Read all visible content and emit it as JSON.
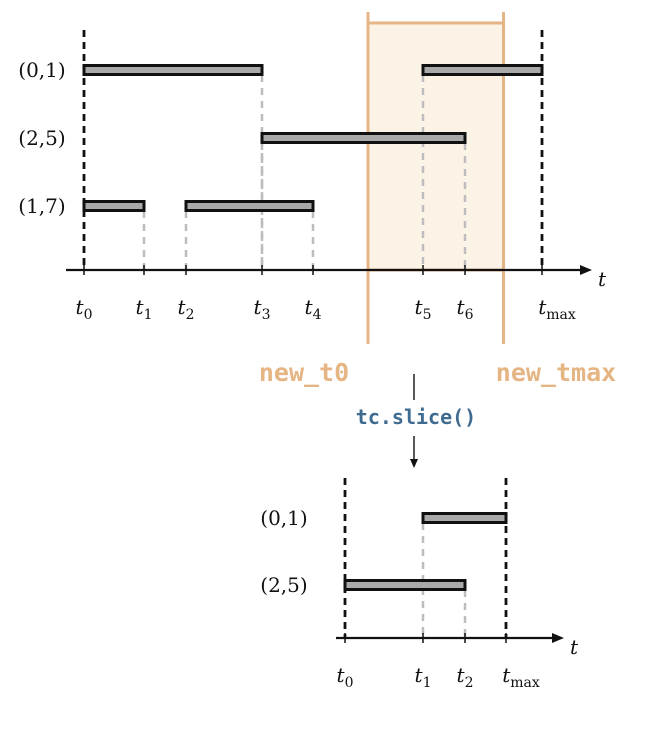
{
  "top": {
    "edges": [
      {
        "label": "(0,1)",
        "intervals": [
          [
            0,
            3
          ],
          [
            5,
            7
          ]
        ]
      },
      {
        "label": "(2,5)",
        "intervals": [
          [
            3,
            6
          ]
        ]
      },
      {
        "label": "(1,7)",
        "intervals": [
          [
            0,
            1
          ],
          [
            2,
            4
          ]
        ]
      }
    ],
    "ticks": [
      {
        "base": "t",
        "sub": "0"
      },
      {
        "base": "t",
        "sub": "1"
      },
      {
        "base": "t",
        "sub": "2"
      },
      {
        "base": "t",
        "sub": "3"
      },
      {
        "base": "t",
        "sub": "4"
      },
      {
        "base": "t",
        "sub": "5"
      },
      {
        "base": "t",
        "sub": "6"
      },
      {
        "base": "t",
        "sub": "max"
      }
    ],
    "axis_label": "t",
    "window": {
      "start": 4.5,
      "end": 6.5
    }
  },
  "window_labels": {
    "start": "new_t0",
    "end": "new_tmax"
  },
  "operation": "tc.slice()",
  "bottom": {
    "edges": [
      {
        "label": "(0,1)",
        "intervals": [
          [
            1,
            3
          ]
        ]
      },
      {
        "label": "(2,5)",
        "intervals": [
          [
            0,
            2
          ]
        ]
      }
    ],
    "ticks": [
      {
        "base": "t",
        "sub": "0"
      },
      {
        "base": "t",
        "sub": "1"
      },
      {
        "base": "t",
        "sub": "2"
      },
      {
        "base": "t",
        "sub": "max"
      }
    ],
    "axis_label": "t"
  },
  "colors": {
    "window": "#e6b586",
    "window_fill": "#fbeede",
    "operation": "#3f6b91",
    "bar": "#a9a9a9"
  }
}
